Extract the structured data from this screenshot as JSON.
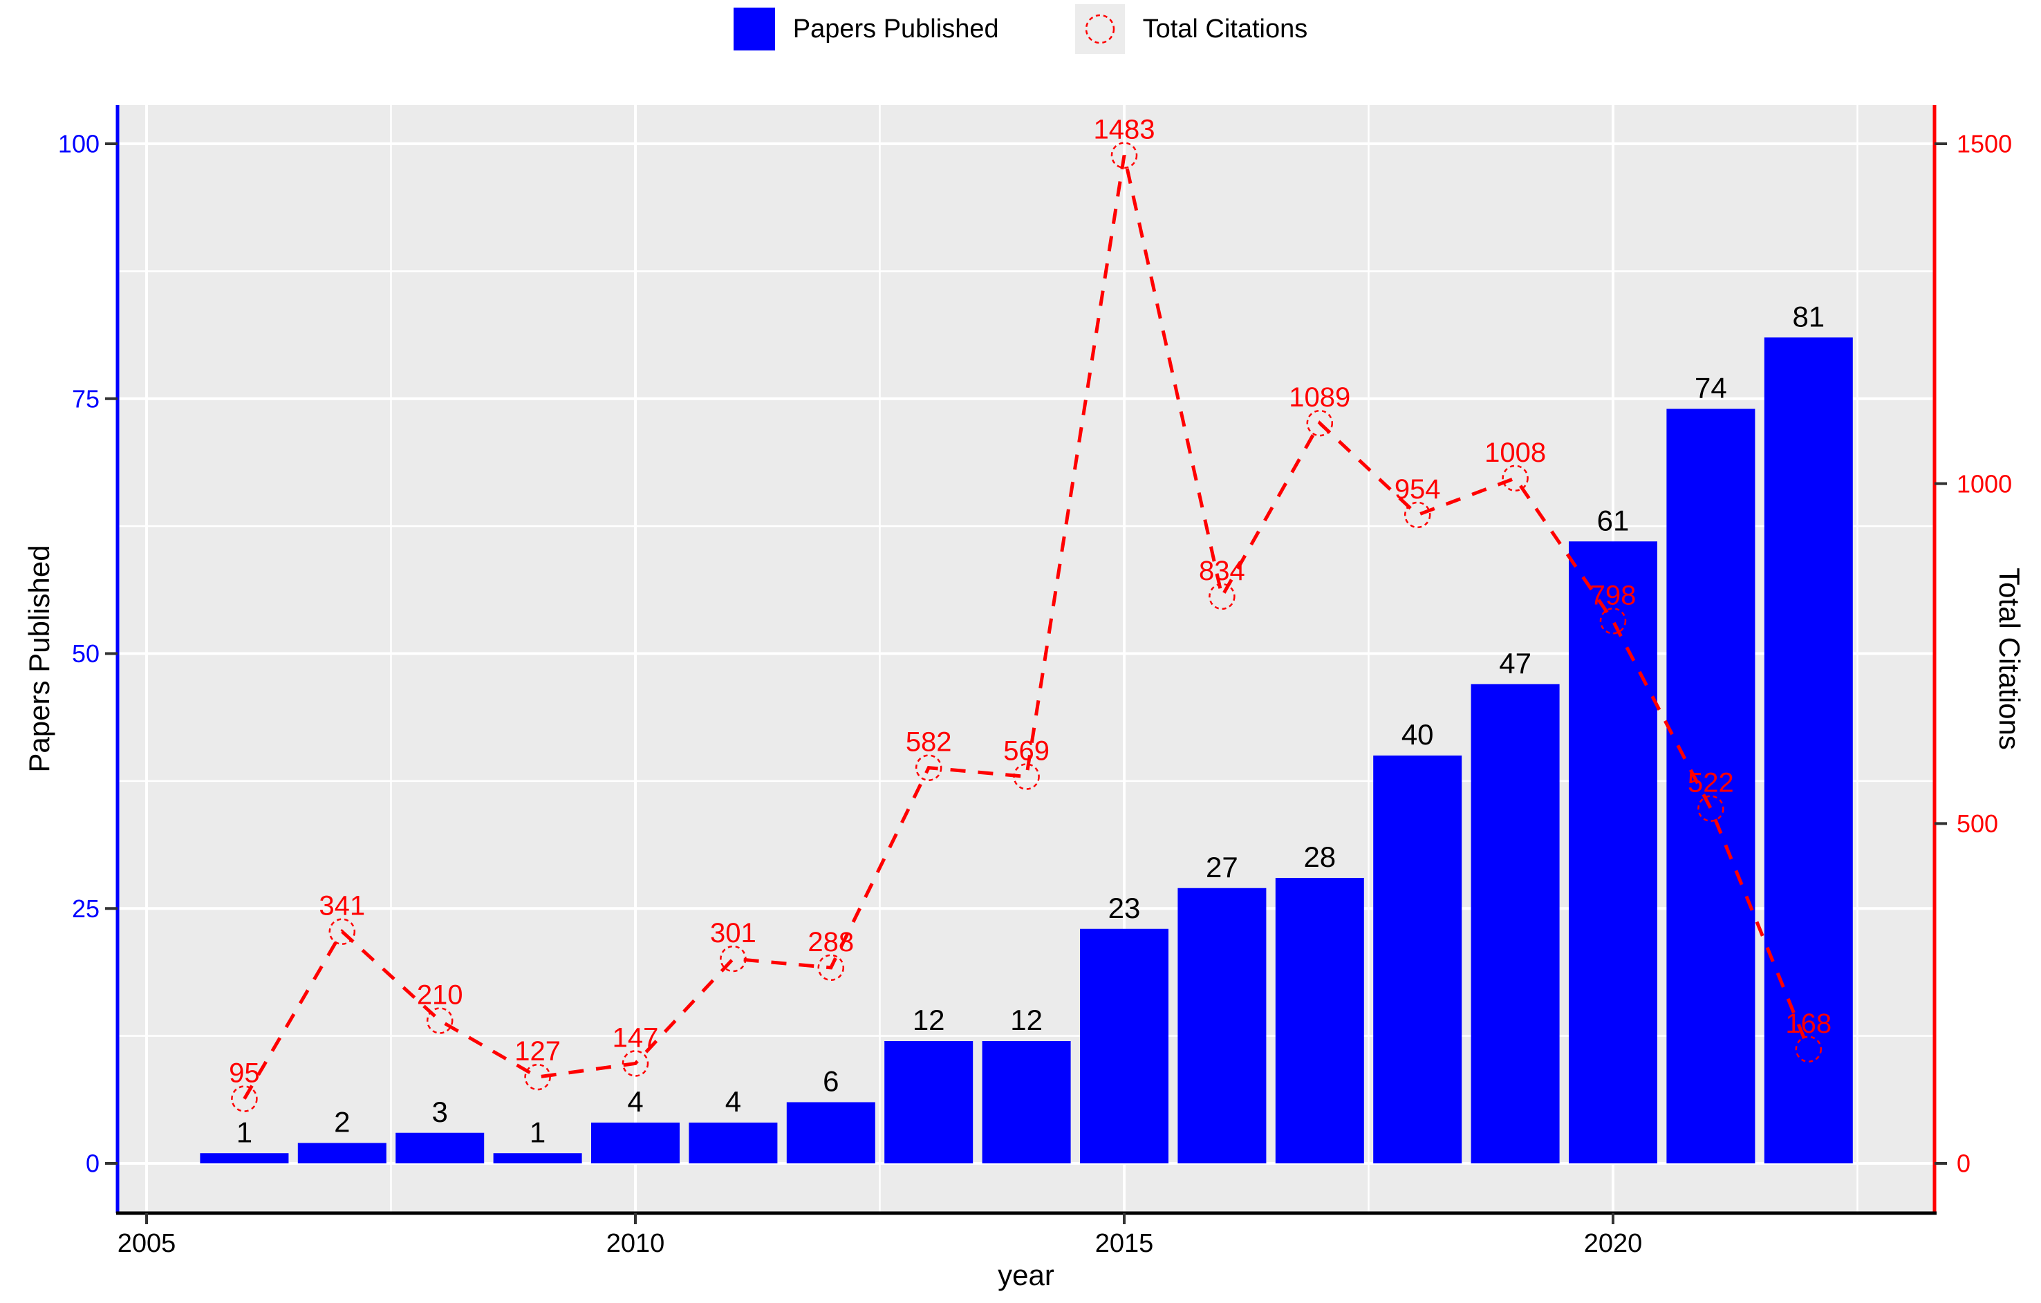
{
  "legend": {
    "papers_label": "Papers Published",
    "citations_label": "Total Citations"
  },
  "axes": {
    "x": {
      "title": "year",
      "major_ticks": [
        2005,
        2010,
        2015,
        2020
      ]
    },
    "y_left": {
      "title": "Papers Published",
      "major_ticks": [
        0,
        25,
        50,
        75,
        100
      ],
      "color": "#0000ff"
    },
    "y_right": {
      "title": "Total Citations",
      "major_ticks": [
        0,
        500,
        1000,
        1500
      ],
      "color": "#ff0000"
    }
  },
  "chart_data": {
    "type": "bar",
    "subtype": "dual-axis bar + dashed line with open-circle markers",
    "x": [
      2006,
      2007,
      2008,
      2009,
      2010,
      2011,
      2012,
      2013,
      2014,
      2015,
      2016,
      2017,
      2018,
      2019,
      2020,
      2021,
      2022
    ],
    "series": [
      {
        "name": "Papers Published",
        "type": "bar",
        "axis": "left",
        "color": "#0000ff",
        "values": [
          1,
          2,
          3,
          1,
          4,
          4,
          6,
          12,
          12,
          23,
          27,
          28,
          40,
          47,
          61,
          74,
          81
        ]
      },
      {
        "name": "Total Citations",
        "type": "line",
        "axis": "right",
        "color": "#ff0000",
        "linestyle": "dashed",
        "marker": "dashed-open-circle",
        "values": [
          95,
          341,
          210,
          127,
          147,
          301,
          288,
          582,
          569,
          1483,
          834,
          1089,
          954,
          1008,
          798,
          522,
          168
        ]
      }
    ],
    "xlabel": "year",
    "ylabel_left": "Papers Published",
    "ylabel_right": "Total Citations",
    "ylim_left": [
      0,
      100
    ],
    "ylim_right": [
      0,
      1500
    ],
    "panel_background": "#ebebeb",
    "gridline_color": "#ffffff",
    "grid": "major and minor, horizontal and vertical",
    "legend_position": "top center",
    "bar_labels_color": "#000000",
    "point_labels_color": "#ff0000",
    "tick_mark_color": "#333333",
    "bottom_axis_color": "#000000"
  }
}
